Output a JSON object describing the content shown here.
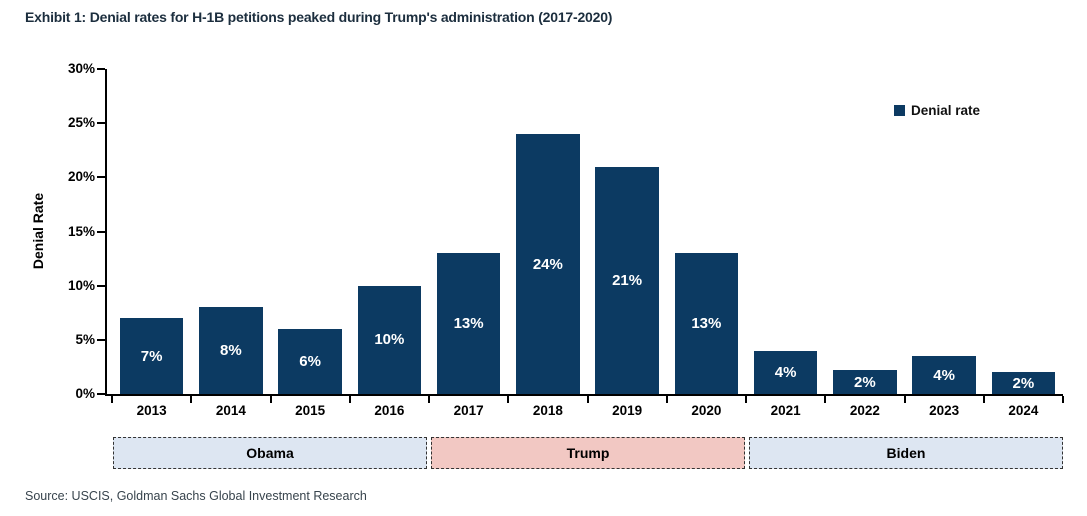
{
  "title_color": "#1c2e3e",
  "source": {
    "text": "Source: USCIS, Goldman Sachs Global Investment Research"
  },
  "colors": {
    "bar": "#0c3a62",
    "band_blue": "#dde6f2",
    "band_pink": "#f2c8c3",
    "axis": "#000000"
  },
  "chart_data": {
    "type": "bar",
    "title": "Exhibit 1: Denial rates for H-1B petitions peaked during Trump's administration (2017-2020)",
    "categories": [
      "2013",
      "2014",
      "2015",
      "2016",
      "2017",
      "2018",
      "2019",
      "2020",
      "2021",
      "2022",
      "2023",
      "2024"
    ],
    "values": [
      7,
      8,
      6,
      10,
      13,
      24,
      21,
      13,
      4,
      2,
      4,
      2
    ],
    "bar_labels": [
      "7%",
      "8%",
      "6%",
      "10%",
      "13%",
      "24%",
      "21%",
      "13%",
      "4%",
      "2%",
      "4%",
      "2%"
    ],
    "bar_heights_pct": [
      7,
      8,
      6,
      10,
      13,
      24,
      21,
      13,
      4,
      2.2,
      3.5,
      2
    ],
    "xlabel": "",
    "ylabel": "Denial Rate",
    "ylim": [
      0,
      30
    ],
    "ytick_values": [
      0,
      5,
      10,
      15,
      20,
      25,
      30
    ],
    "ytick_labels": [
      "0%",
      "5%",
      "10%",
      "15%",
      "20%",
      "25%",
      "30%"
    ],
    "grid": false,
    "legend": {
      "label": "Denial rate",
      "position": "top-right"
    },
    "annotations": [
      {
        "label": "Obama",
        "slots": [
          0,
          3
        ],
        "color_key": "band_blue"
      },
      {
        "label": "Trump",
        "slots": [
          4,
          7
        ],
        "color_key": "band_pink"
      },
      {
        "label": "Biden",
        "slots": [
          8,
          11
        ],
        "color_key": "band_blue"
      }
    ]
  }
}
